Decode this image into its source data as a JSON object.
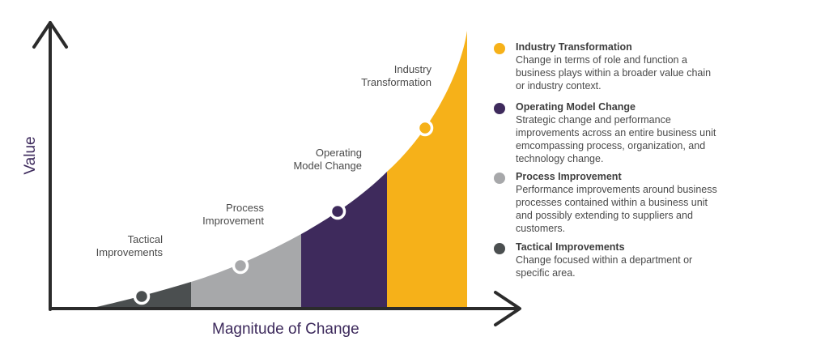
{
  "axes": {
    "x_title": "Magnitude of Change",
    "y_title": "Value"
  },
  "colors": {
    "axis": "#2b2b2b",
    "tactical": "#4b4f50",
    "process": "#a7a8aa",
    "operating": "#3e2a5c",
    "industry": "#f6b119",
    "x_title": "#3d2a5c"
  },
  "curve_labels": {
    "tactical": "Tactical\nImprovements",
    "process": "Process\nImprovement",
    "operating": "Operating\nModel Change",
    "industry": "Industry\nTransformation"
  },
  "legend": [
    {
      "title": "Industry Transformation",
      "description": "Change in terms of role and function a business plays within a broader value chain or industry context.",
      "color": "#f6b119"
    },
    {
      "title": "Operating Model Change",
      "description": "Strategic change and performance improvements across an entire business unit emcompassing process, organization, and technology change.",
      "color": "#3e2a5c"
    },
    {
      "title": "Process Improvement",
      "description": "Performance improvements around business processes contained within a business unit and possibly extending to suppliers and customers.",
      "color": "#a7a8aa"
    },
    {
      "title": "Tactical Improvements",
      "description": "Change focused within a department or specific area.",
      "color": "#4b4f50"
    }
  ]
}
